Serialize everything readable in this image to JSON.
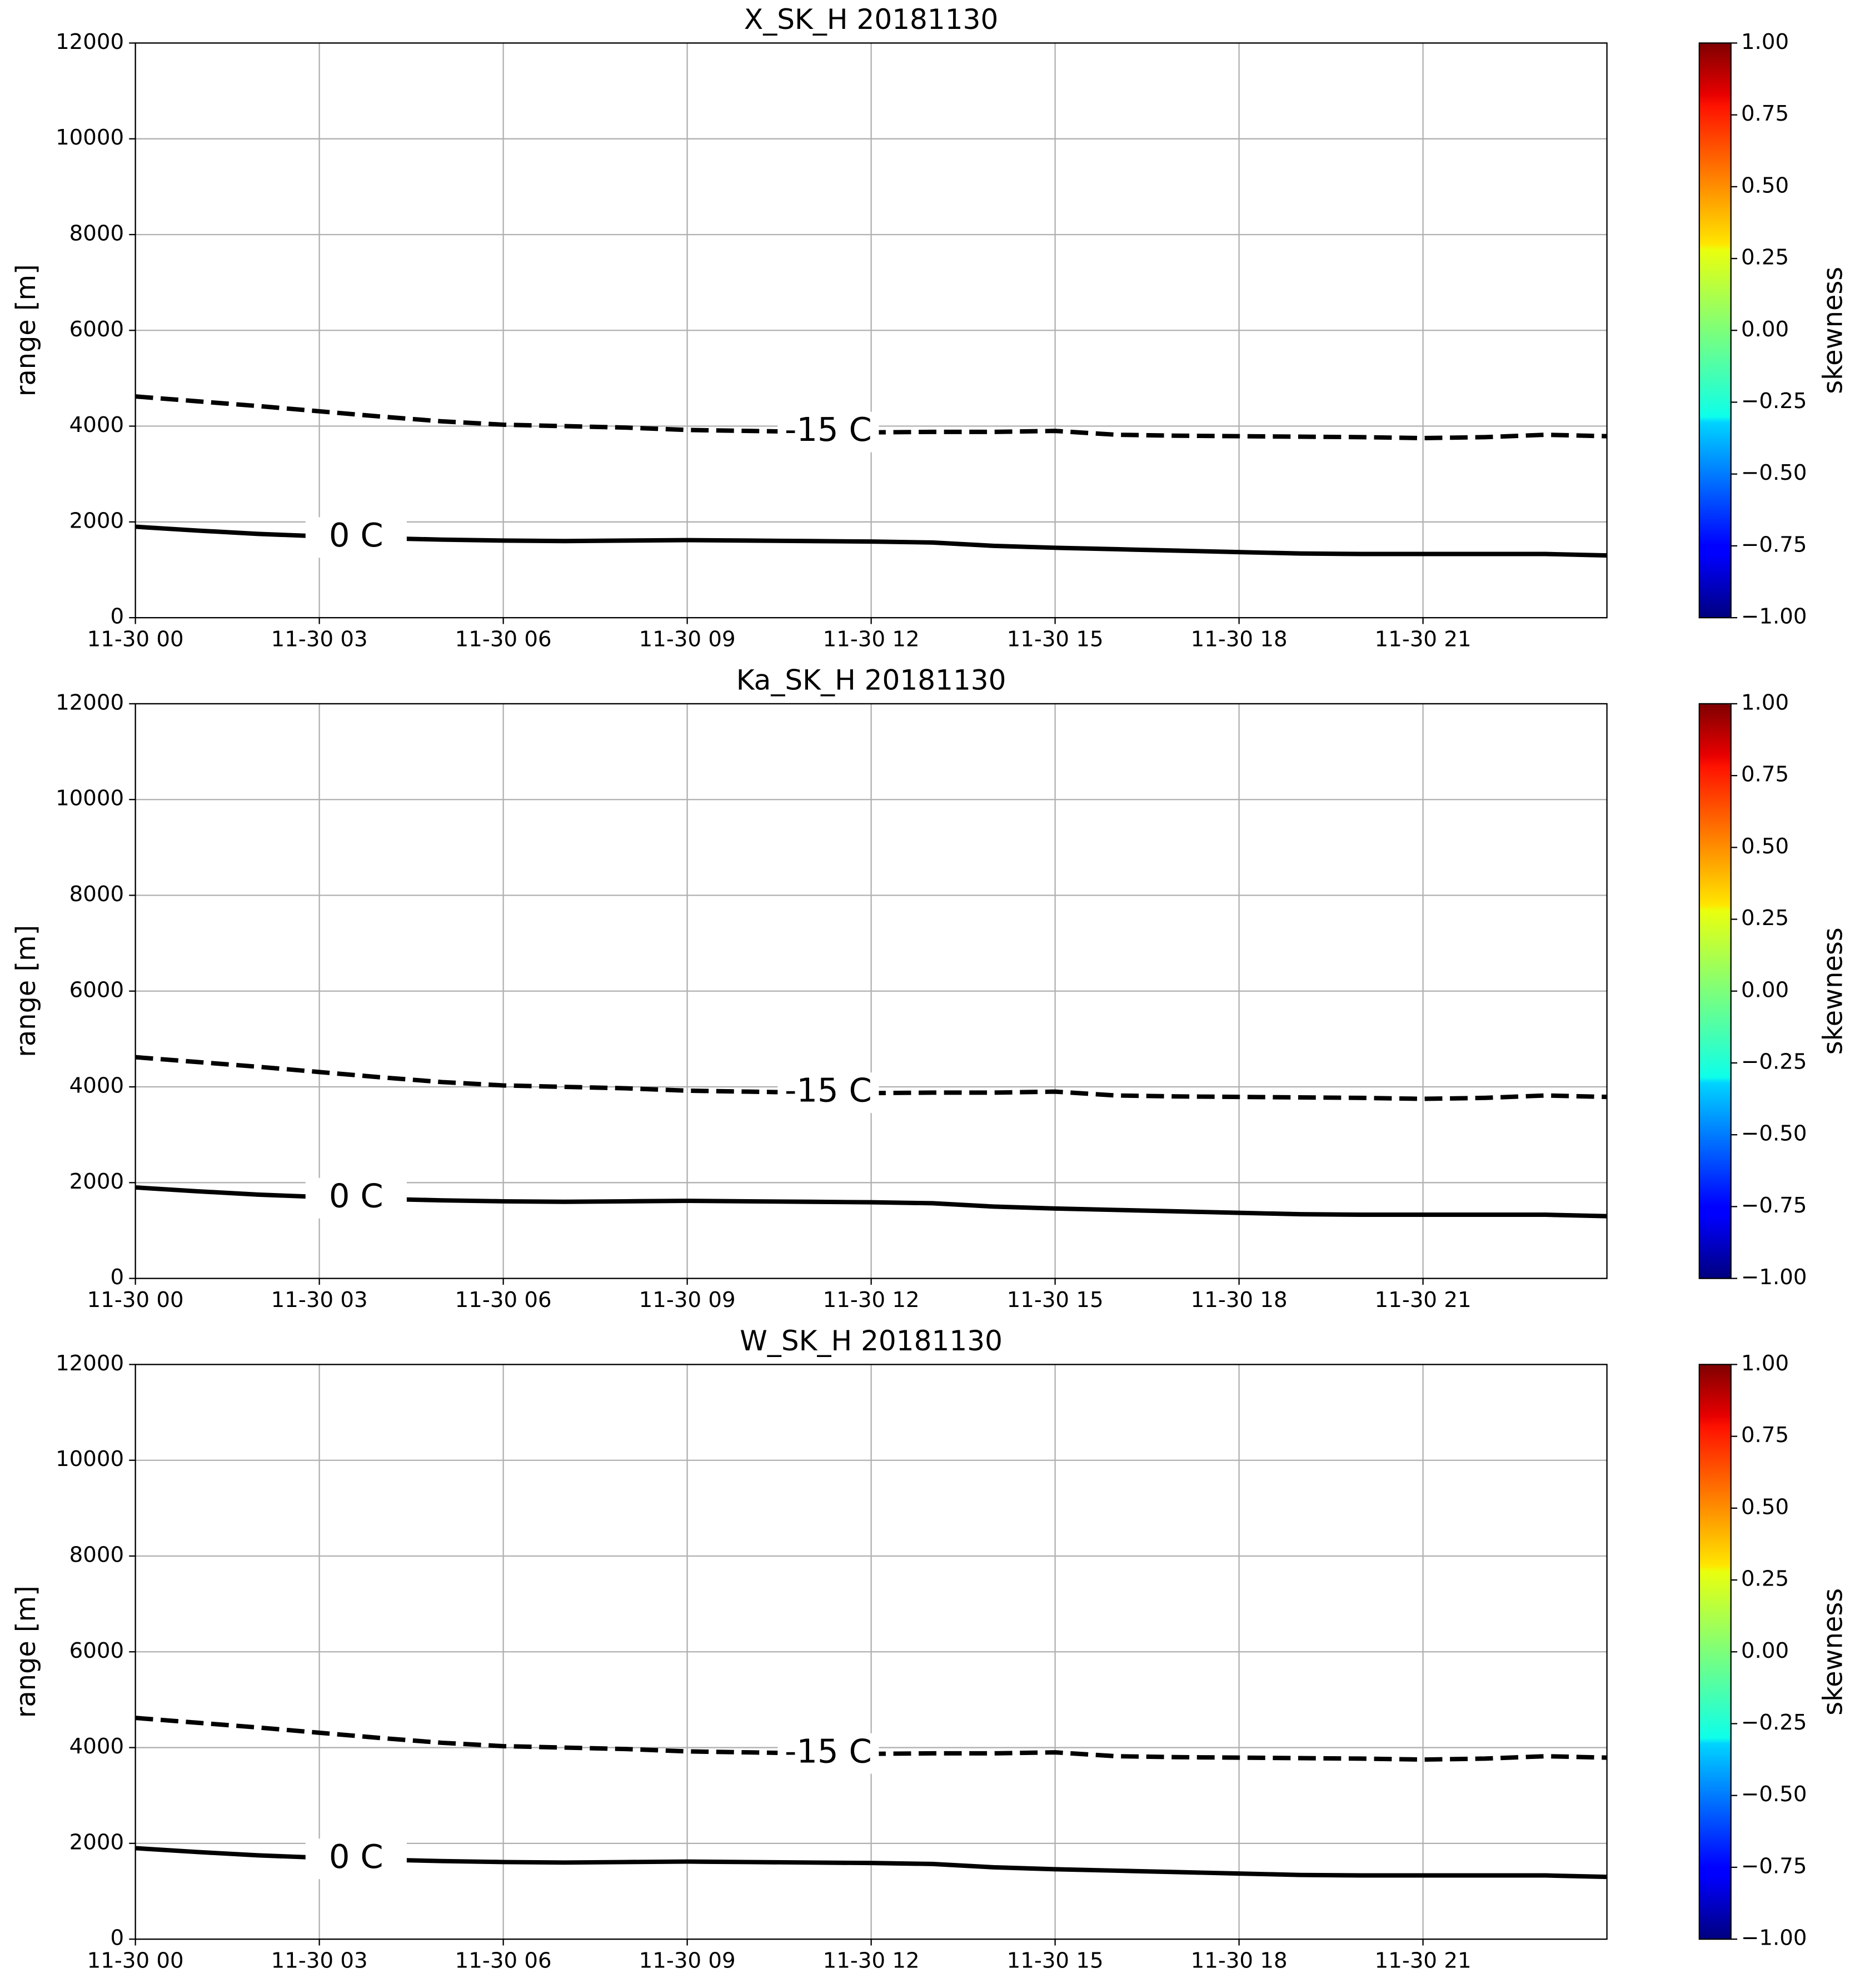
{
  "chart_data": [
    {
      "type": "line",
      "title": "X_SK_H 20181130",
      "ylabel": "range [m]",
      "xlim": [
        0,
        24
      ],
      "xticks": [
        {
          "value": 0,
          "label": "11-30 00"
        },
        {
          "value": 3,
          "label": "11-30 03"
        },
        {
          "value": 6,
          "label": "11-30 06"
        },
        {
          "value": 9,
          "label": "11-30 09"
        },
        {
          "value": 12,
          "label": "11-30 12"
        },
        {
          "value": 15,
          "label": "11-30 15"
        },
        {
          "value": 18,
          "label": "11-30 18"
        },
        {
          "value": 21,
          "label": "11-30 21"
        }
      ],
      "ylim": [
        0,
        12000
      ],
      "yticks": [
        0,
        2000,
        4000,
        6000,
        8000,
        10000,
        12000
      ],
      "grid": true,
      "colormap": "jet",
      "clim": [
        -1,
        1
      ],
      "colorbar_label": "skewness",
      "cticks": [
        {
          "value": -1,
          "label": "−1.00"
        },
        {
          "value": -0.75,
          "label": "−0.75"
        },
        {
          "value": -0.5,
          "label": "−0.50"
        },
        {
          "value": -0.25,
          "label": "−0.25"
        },
        {
          "value": 0,
          "label": "0.00"
        },
        {
          "value": 0.25,
          "label": "0.25"
        },
        {
          "value": 0.5,
          "label": "0.50"
        },
        {
          "value": 0.75,
          "label": "0.75"
        },
        {
          "value": 1,
          "label": "1.00"
        }
      ],
      "x": [
        0,
        1,
        2,
        3,
        4,
        5,
        6,
        7,
        8,
        9,
        10,
        11,
        12,
        13,
        14,
        15,
        16,
        17,
        18,
        19,
        20,
        21,
        22,
        23,
        24
      ],
      "series": [
        {
          "name": "-15 C",
          "color": "#000000",
          "dashed": true,
          "values": [
            4620,
            4520,
            4420,
            4310,
            4200,
            4100,
            4030,
            4000,
            3970,
            3920,
            3900,
            3880,
            3870,
            3880,
            3880,
            3900,
            3820,
            3800,
            3790,
            3780,
            3770,
            3750,
            3770,
            3820,
            3790
          ]
        },
        {
          "name": "0 C",
          "color": "#000000",
          "dashed": false,
          "values": [
            1900,
            1820,
            1750,
            1700,
            1660,
            1630,
            1610,
            1600,
            1610,
            1620,
            1610,
            1600,
            1590,
            1570,
            1500,
            1460,
            1430,
            1400,
            1370,
            1340,
            1330,
            1330,
            1330,
            1330,
            1300
          ]
        }
      ]
    },
    {
      "type": "line",
      "title": "Ka_SK_H 20181130",
      "ylabel": "range [m]",
      "xlim": [
        0,
        24
      ],
      "xticks": [
        {
          "value": 0,
          "label": "11-30 00"
        },
        {
          "value": 3,
          "label": "11-30 03"
        },
        {
          "value": 6,
          "label": "11-30 06"
        },
        {
          "value": 9,
          "label": "11-30 09"
        },
        {
          "value": 12,
          "label": "11-30 12"
        },
        {
          "value": 15,
          "label": "11-30 15"
        },
        {
          "value": 18,
          "label": "11-30 18"
        },
        {
          "value": 21,
          "label": "11-30 21"
        }
      ],
      "ylim": [
        0,
        12000
      ],
      "yticks": [
        0,
        2000,
        4000,
        6000,
        8000,
        10000,
        12000
      ],
      "grid": true,
      "colormap": "jet",
      "clim": [
        -1,
        1
      ],
      "colorbar_label": "skewness",
      "cticks": [
        {
          "value": -1,
          "label": "−1.00"
        },
        {
          "value": -0.75,
          "label": "−0.75"
        },
        {
          "value": -0.5,
          "label": "−0.50"
        },
        {
          "value": -0.25,
          "label": "−0.25"
        },
        {
          "value": 0,
          "label": "0.00"
        },
        {
          "value": 0.25,
          "label": "0.25"
        },
        {
          "value": 0.5,
          "label": "0.50"
        },
        {
          "value": 0.75,
          "label": "0.75"
        },
        {
          "value": 1,
          "label": "1.00"
        }
      ],
      "x": [
        0,
        1,
        2,
        3,
        4,
        5,
        6,
        7,
        8,
        9,
        10,
        11,
        12,
        13,
        14,
        15,
        16,
        17,
        18,
        19,
        20,
        21,
        22,
        23,
        24
      ],
      "series": [
        {
          "name": "-15 C",
          "color": "#000000",
          "dashed": true,
          "values": [
            4620,
            4520,
            4420,
            4310,
            4200,
            4100,
            4030,
            4000,
            3970,
            3920,
            3900,
            3880,
            3870,
            3880,
            3880,
            3900,
            3820,
            3800,
            3790,
            3780,
            3770,
            3750,
            3770,
            3820,
            3790
          ]
        },
        {
          "name": "0 C",
          "color": "#000000",
          "dashed": false,
          "values": [
            1900,
            1820,
            1750,
            1700,
            1660,
            1630,
            1610,
            1600,
            1610,
            1620,
            1610,
            1600,
            1590,
            1570,
            1500,
            1460,
            1430,
            1400,
            1370,
            1340,
            1330,
            1330,
            1330,
            1330,
            1300
          ]
        }
      ]
    },
    {
      "type": "line",
      "title": "W_SK_H 20181130",
      "ylabel": "range [m]",
      "xlim": [
        0,
        24
      ],
      "xticks": [
        {
          "value": 0,
          "label": "11-30 00"
        },
        {
          "value": 3,
          "label": "11-30 03"
        },
        {
          "value": 6,
          "label": "11-30 06"
        },
        {
          "value": 9,
          "label": "11-30 09"
        },
        {
          "value": 12,
          "label": "11-30 12"
        },
        {
          "value": 15,
          "label": "11-30 15"
        },
        {
          "value": 18,
          "label": "11-30 18"
        },
        {
          "value": 21,
          "label": "11-30 21"
        }
      ],
      "ylim": [
        0,
        12000
      ],
      "yticks": [
        0,
        2000,
        4000,
        6000,
        8000,
        10000,
        12000
      ],
      "grid": true,
      "colormap": "jet",
      "clim": [
        -1,
        1
      ],
      "colorbar_label": "skewness",
      "cticks": [
        {
          "value": -1,
          "label": "−1.00"
        },
        {
          "value": -0.75,
          "label": "−0.75"
        },
        {
          "value": -0.5,
          "label": "−0.50"
        },
        {
          "value": -0.25,
          "label": "−0.25"
        },
        {
          "value": 0,
          "label": "0.00"
        },
        {
          "value": 0.25,
          "label": "0.25"
        },
        {
          "value": 0.5,
          "label": "0.50"
        },
        {
          "value": 0.75,
          "label": "0.75"
        },
        {
          "value": 1,
          "label": "1.00"
        }
      ],
      "x": [
        0,
        1,
        2,
        3,
        4,
        5,
        6,
        7,
        8,
        9,
        10,
        11,
        12,
        13,
        14,
        15,
        16,
        17,
        18,
        19,
        20,
        21,
        22,
        23,
        24
      ],
      "series": [
        {
          "name": "-15 C",
          "color": "#000000",
          "dashed": true,
          "values": [
            4620,
            4520,
            4420,
            4310,
            4200,
            4100,
            4030,
            4000,
            3970,
            3920,
            3900,
            3880,
            3870,
            3880,
            3880,
            3900,
            3820,
            3800,
            3790,
            3780,
            3770,
            3750,
            3770,
            3820,
            3790
          ]
        },
        {
          "name": "0 C",
          "color": "#000000",
          "dashed": false,
          "values": [
            1900,
            1820,
            1750,
            1700,
            1660,
            1630,
            1610,
            1600,
            1610,
            1620,
            1610,
            1600,
            1590,
            1570,
            1500,
            1460,
            1430,
            1400,
            1370,
            1340,
            1330,
            1330,
            1330,
            1330,
            1300
          ]
        }
      ]
    }
  ]
}
